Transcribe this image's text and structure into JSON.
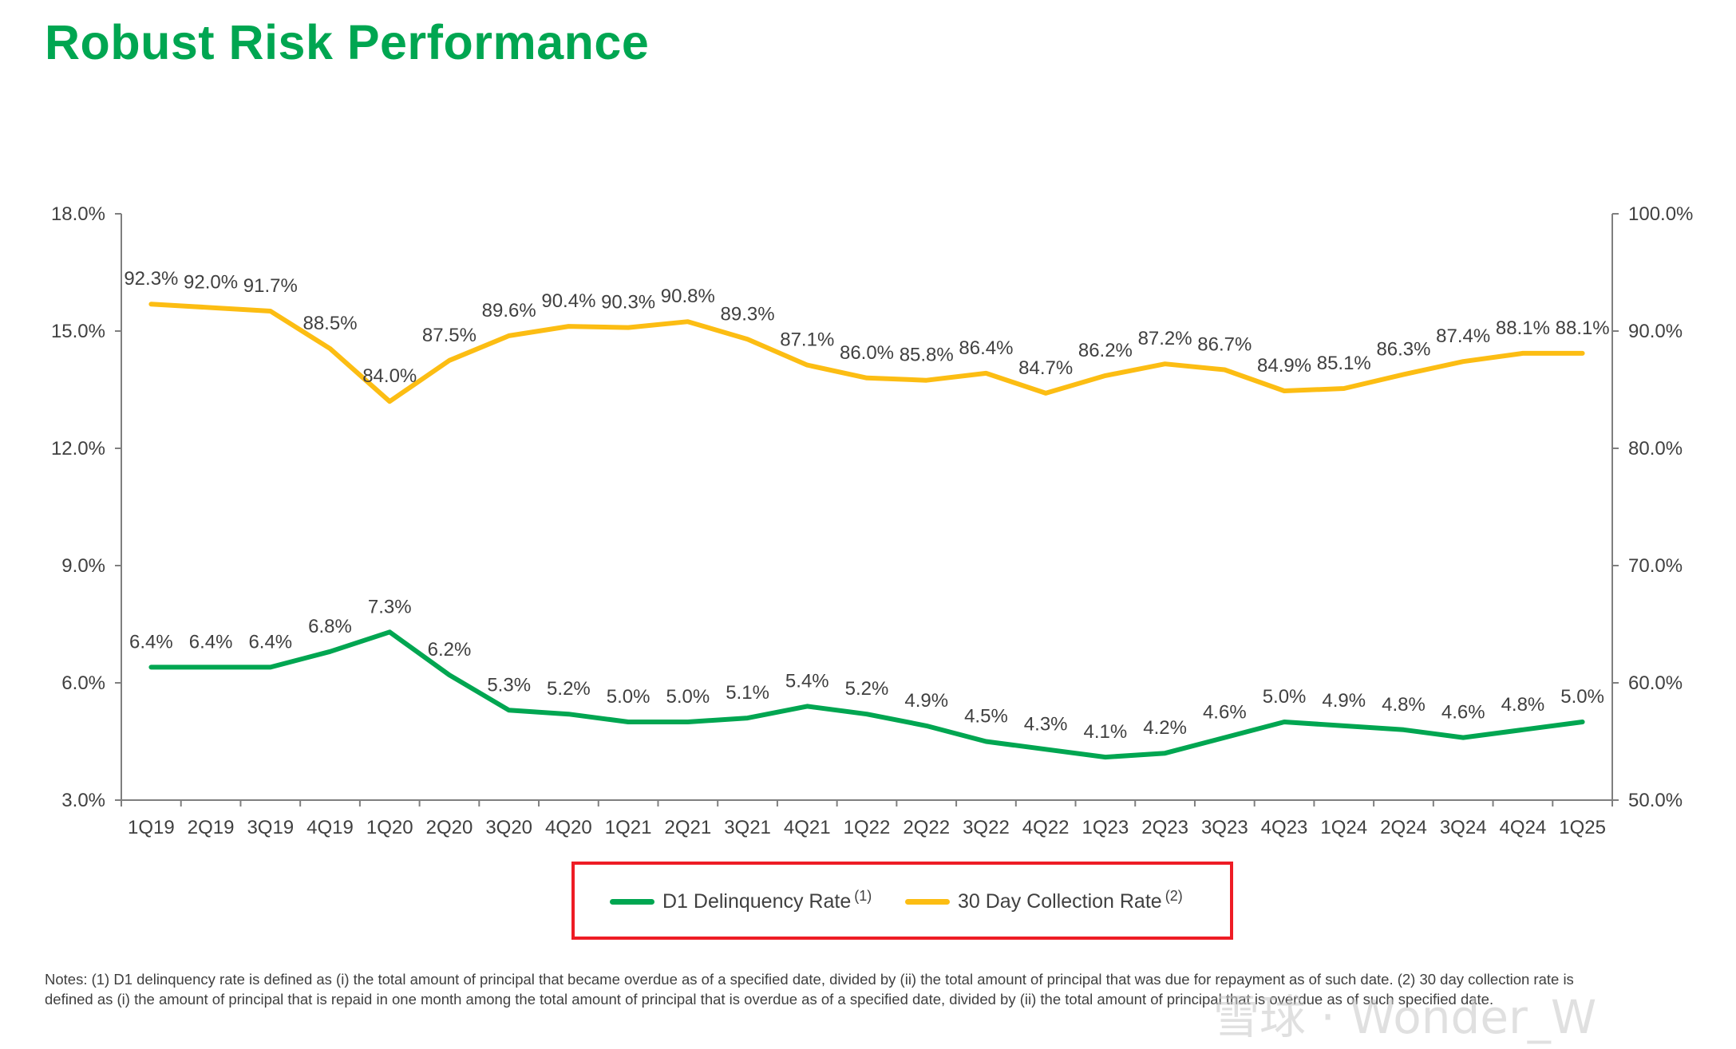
{
  "page": {
    "title": "Robust Risk Performance",
    "notes": "Notes: (1) D1 delinquency rate is defined as (i) the total amount of principal that became overdue as of a specified date, divided by (ii) the total amount of principal that was due for repayment as of such date. (2) 30 day collection rate is defined as (i) the amount of principal that is repaid in one month among the total amount of principal that is overdue as of a specified date, divided by (ii) the total amount of principal that is overdue as of such specified date.",
    "watermark": "雪球 · Wonder_W"
  },
  "chart_data": {
    "type": "line",
    "title": "",
    "categories": [
      "1Q19",
      "2Q19",
      "3Q19",
      "4Q19",
      "1Q20",
      "2Q20",
      "3Q20",
      "4Q20",
      "1Q21",
      "2Q21",
      "3Q21",
      "4Q21",
      "1Q22",
      "2Q22",
      "3Q22",
      "4Q22",
      "1Q23",
      "2Q23",
      "3Q23",
      "4Q23",
      "1Q24",
      "2Q24",
      "3Q24",
      "4Q24",
      "1Q25"
    ],
    "y_left": {
      "min": 3.0,
      "max": 18.0,
      "ticks": [
        3.0,
        6.0,
        9.0,
        12.0,
        15.0,
        18.0
      ],
      "tick_labels": [
        "3.0%",
        "6.0%",
        "9.0%",
        "12.0%",
        "15.0%",
        "18.0%"
      ]
    },
    "y_right": {
      "min": 50.0,
      "max": 100.0,
      "ticks": [
        50.0,
        60.0,
        70.0,
        80.0,
        90.0,
        100.0
      ],
      "tick_labels": [
        "50.0%",
        "60.0%",
        "70.0%",
        "80.0%",
        "90.0%",
        "100.0%"
      ]
    },
    "grid": false,
    "legend_position": "bottom-center",
    "series": [
      {
        "name": "D1 Delinquency Rate",
        "superscript": "(1)",
        "axis": "left",
        "color": "#00a651",
        "values": [
          6.4,
          6.4,
          6.4,
          6.8,
          7.3,
          6.2,
          5.3,
          5.2,
          5.0,
          5.0,
          5.1,
          5.4,
          5.2,
          4.9,
          4.5,
          4.3,
          4.1,
          4.2,
          4.6,
          5.0,
          4.9,
          4.8,
          4.6,
          4.8,
          5.0
        ],
        "labels": [
          "6.4%",
          "6.4%",
          "6.4%",
          "6.8%",
          "7.3%",
          "6.2%",
          "5.3%",
          "5.2%",
          "5.0%",
          "5.0%",
          "5.1%",
          "5.4%",
          "5.2%",
          "4.9%",
          "4.5%",
          "4.3%",
          "4.1%",
          "4.2%",
          "4.6%",
          "5.0%",
          "4.9%",
          "4.8%",
          "4.6%",
          "4.8%",
          "5.0%"
        ]
      },
      {
        "name": "30 Day Collection Rate",
        "superscript": "(2)",
        "axis": "right",
        "color": "#fcbd13",
        "values": [
          92.3,
          92.0,
          91.7,
          88.5,
          84.0,
          87.5,
          89.6,
          90.4,
          90.3,
          90.8,
          89.3,
          87.1,
          86.0,
          85.8,
          86.4,
          84.7,
          86.2,
          87.2,
          86.7,
          84.9,
          85.1,
          86.3,
          87.4,
          88.1,
          88.1
        ],
        "labels": [
          "92.3%",
          "92.0%",
          "91.7%",
          "88.5%",
          "84.0%",
          "87.5%",
          "89.6%",
          "90.4%",
          "90.3%",
          "90.8%",
          "89.3%",
          "87.1%",
          "86.0%",
          "85.8%",
          "86.4%",
          "84.7%",
          "86.2%",
          "87.2%",
          "86.7%",
          "84.9%",
          "85.1%",
          "86.3%",
          "87.4%",
          "88.1%",
          "88.1%"
        ]
      }
    ]
  }
}
